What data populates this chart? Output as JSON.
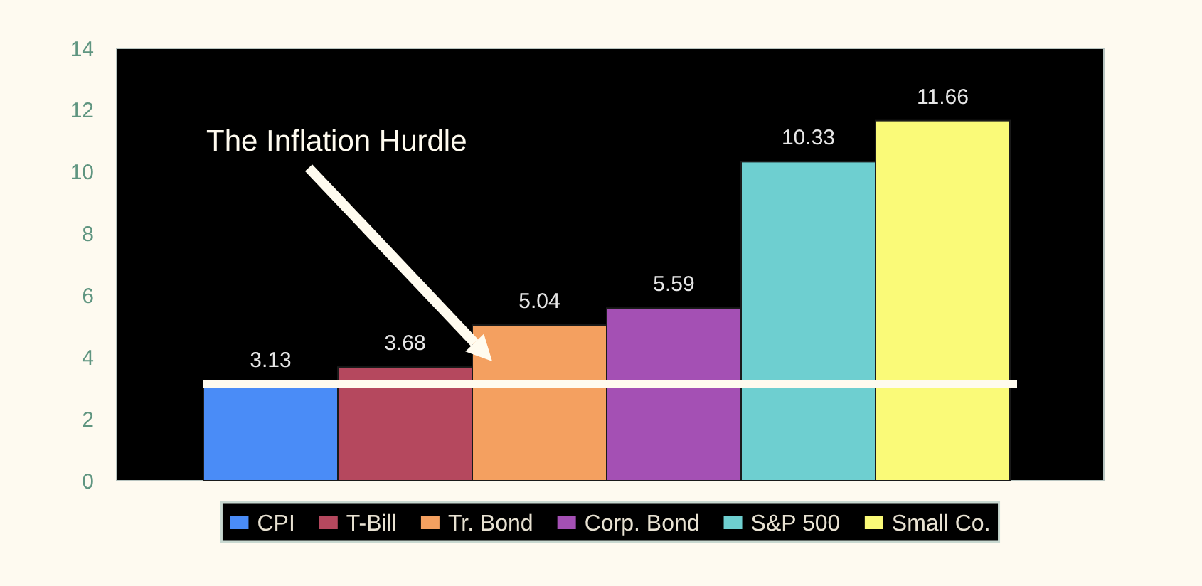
{
  "chart_data": {
    "type": "bar",
    "categories": [
      null
    ],
    "series": [
      {
        "name": "CPI",
        "color": "#4a8cf7",
        "values": [
          3.13
        ]
      },
      {
        "name": "T-Bill",
        "color": "#b5485e",
        "values": [
          3.68
        ]
      },
      {
        "name": "Tr. Bond",
        "color": "#f4a060",
        "values": [
          5.04
        ]
      },
      {
        "name": "Corp. Bond",
        "color": "#a450b4",
        "values": [
          5.59
        ]
      },
      {
        "name": "S&P 500",
        "color": "#6ecfd0",
        "values": [
          10.33
        ]
      },
      {
        "name": "Small Co.",
        "color": "#fafa78",
        "values": [
          11.66
        ]
      }
    ],
    "ylim": [
      0,
      14
    ],
    "yticks": [
      0,
      2,
      4,
      6,
      8,
      10,
      12,
      14
    ],
    "tick_labels": "y",
    "data_labels": true,
    "legend": "bottom",
    "ref_lines": [
      {
        "axis": "y",
        "value": 3.13,
        "color": "#fffbef"
      }
    ],
    "annotations": [
      "The Inflation Hurdle"
    ]
  }
}
